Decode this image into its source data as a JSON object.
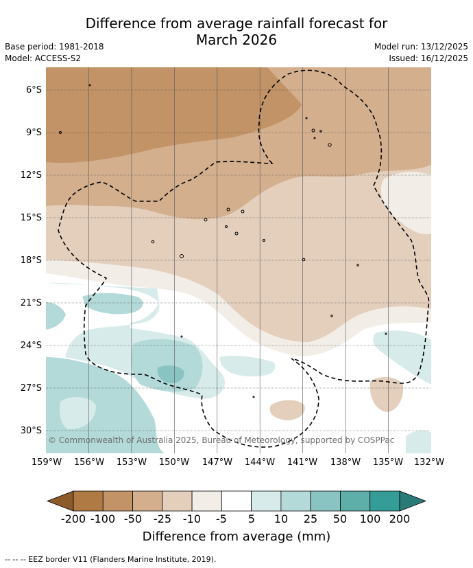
{
  "title_line1": "Difference from average rainfall forecast for",
  "title_line2": "March 2026",
  "meta_left": [
    "Base period: 1981-2018",
    "Model: ACCESS-S2"
  ],
  "meta_right": [
    "Model run: 13/12/2025",
    "Issued: 16/12/2025"
  ],
  "copyright": "© Commonwealth of Australia 2025, Bureau of Meteorology, supported by COSPPac",
  "lat_labels": [
    "6°S",
    "9°S",
    "12°S",
    "15°S",
    "18°S",
    "21°S",
    "24°S",
    "27°S",
    "30°S"
  ],
  "lat_values": [
    -6,
    -9,
    -12,
    -15,
    -18,
    -21,
    -24,
    -27,
    -30
  ],
  "lon_labels": [
    "159°W",
    "156°W",
    "153°W",
    "150°W",
    "147°W",
    "144°W",
    "141°W",
    "138°W",
    "135°W",
    "132°W"
  ],
  "lon_values": [
    -159,
    -156,
    -153,
    -150,
    -147,
    -144,
    -141,
    -138,
    -135,
    -132
  ],
  "colorbar": {
    "labels": [
      "-200",
      "-100",
      "-50",
      "-25",
      "-10",
      "-5",
      "5",
      "10",
      "25",
      "50",
      "100",
      "200"
    ],
    "colors": [
      "#8c5a2b",
      "#b07a45",
      "#c19366",
      "#d4af8e",
      "#e4cfbd",
      "#f2ede6",
      "#ffffff",
      "#d7ebea",
      "#b3dad8",
      "#8ac4c2",
      "#5eaeaa",
      "#359d97",
      "#2a7b77"
    ],
    "title": "Difference from average (mm)"
  },
  "footnote": "--  --  -- EEZ border V11 (Flanders Marine Institute, 2019)."
}
